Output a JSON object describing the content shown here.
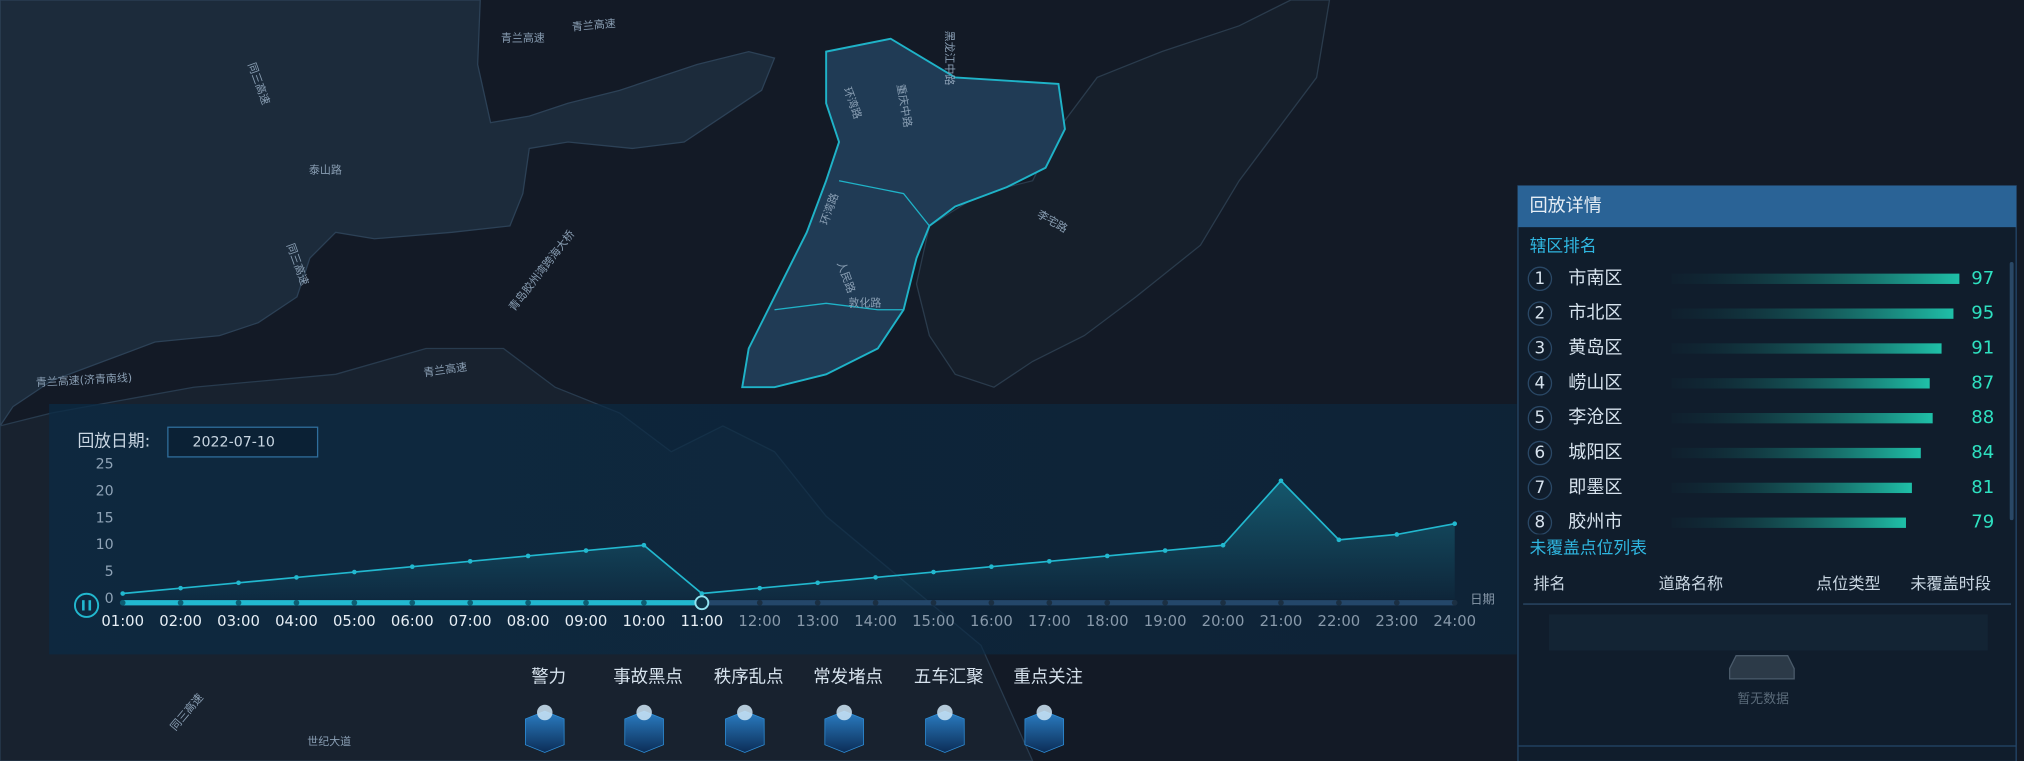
{
  "map_labels": [
    "青兰高速",
    "青兰高速",
    "同三高速",
    "泰山路",
    "同三高速",
    "青岛胶州湾跨海大桥",
    "青兰高速",
    "青兰高速(济青南线)",
    "环湾路",
    "重庆中路",
    "黑龙江中路",
    "环湾路",
    "人民路",
    "敦化路",
    "李宅路",
    "同三高速",
    "世纪大道"
  ],
  "playback": {
    "label": "回放日期:",
    "date": "2022-07-10"
  },
  "chart_data": {
    "type": "line",
    "categories": [
      "01:00",
      "02:00",
      "03:00",
      "04:00",
      "05:00",
      "06:00",
      "07:00",
      "08:00",
      "09:00",
      "10:00",
      "11:00",
      "12:00",
      "13:00",
      "14:00",
      "15:00",
      "16:00",
      "17:00",
      "18:00",
      "19:00",
      "20:00",
      "21:00",
      "22:00",
      "23:00",
      "24:00"
    ],
    "values": [
      1,
      2,
      3,
      4,
      5,
      6,
      7,
      8,
      9,
      10,
      1,
      2,
      3,
      4,
      5,
      6,
      7,
      8,
      9,
      10,
      22,
      11,
      12,
      14
    ],
    "ylim": [
      0,
      25
    ],
    "yticks": [
      0,
      5,
      10,
      15,
      20,
      25
    ],
    "x_axis_label": "日期",
    "color": "#22b8cf"
  },
  "toolbar": {
    "items": [
      "警力",
      "事故黑点",
      "秩序乱点",
      "常发堵点",
      "五车汇聚",
      "重点关注"
    ]
  },
  "detail_panel": {
    "title": "回放详情",
    "ranking": {
      "title": "辖区排名",
      "rows": [
        {
          "rank": 1,
          "name": "市南区",
          "value": 97
        },
        {
          "rank": 2,
          "name": "市北区",
          "value": 95
        },
        {
          "rank": 3,
          "name": "黄岛区",
          "value": 91
        },
        {
          "rank": 4,
          "name": "崂山区",
          "value": 87
        },
        {
          "rank": 5,
          "name": "李沧区",
          "value": 88
        },
        {
          "rank": 6,
          "name": "城阳区",
          "value": 84
        },
        {
          "rank": 7,
          "name": "即墨区",
          "value": 81
        },
        {
          "rank": 8,
          "name": "胶州市",
          "value": 79
        }
      ]
    },
    "uncovered": {
      "title": "未覆盖点位列表",
      "columns": [
        "排名",
        "道路名称",
        "点位类型",
        "未覆盖时段"
      ],
      "empty_text": "暂无数据"
    }
  }
}
